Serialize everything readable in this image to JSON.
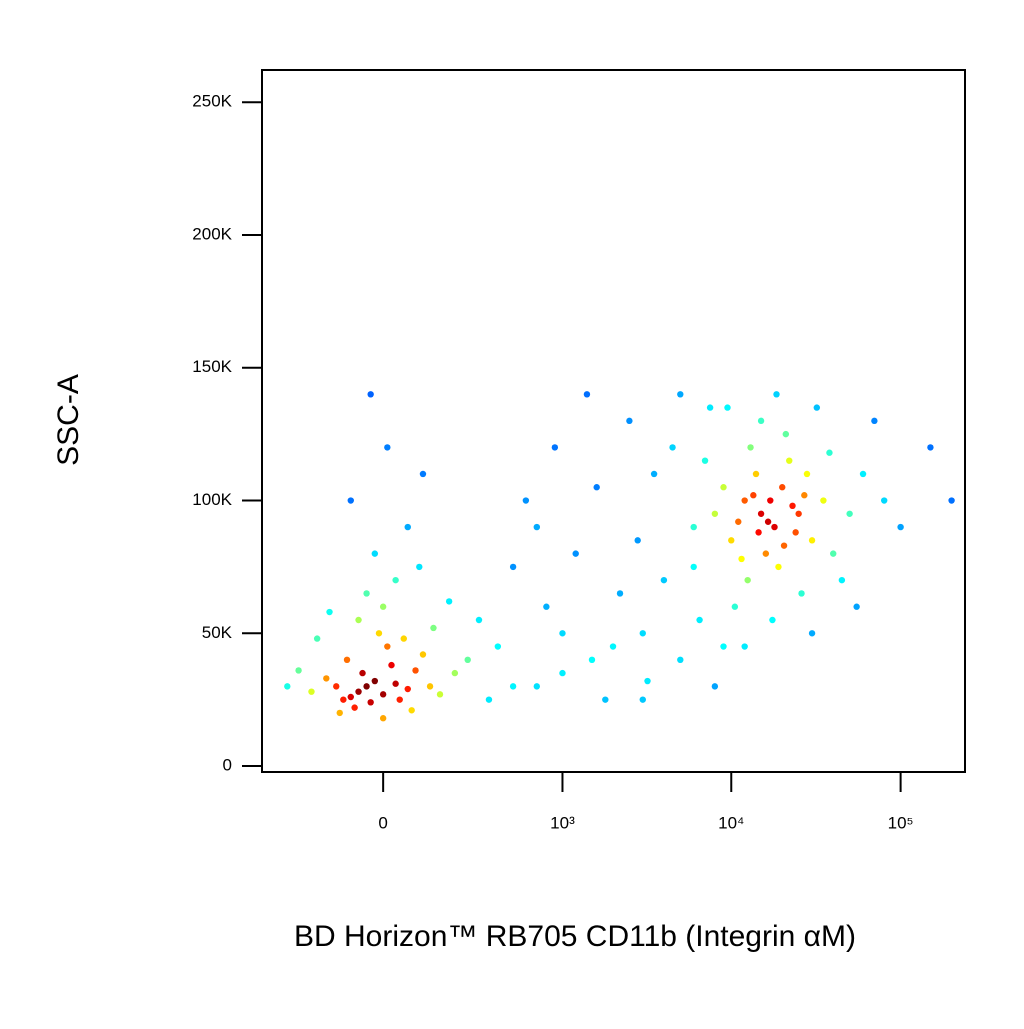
{
  "chart_data": {
    "type": "scatter",
    "xlabel": "BD Horizon™ RB705 CD11b (Integrin αM)",
    "ylabel": "SSC-A",
    "xscale": "biexponential",
    "xlim": [
      -440,
      240000
    ],
    "ylim": [
      -2250,
      262144
    ],
    "xticks": [
      0,
      {
        "value": 1000,
        "label": "10³"
      },
      {
        "value": 10000,
        "label": "10⁴"
      },
      {
        "value": 100000,
        "label": "10⁵"
      }
    ],
    "yticks": [
      0,
      {
        "value": 50000,
        "label": "50K"
      },
      {
        "value": 100000,
        "label": "100K"
      },
      {
        "value": 150000,
        "label": "150K"
      },
      {
        "value": 200000,
        "label": "200K"
      },
      {
        "value": 250000,
        "label": "250K"
      }
    ],
    "colormap": "jet",
    "x": [
      -60,
      -40,
      -80,
      -20,
      -100,
      -50,
      0,
      30,
      -120,
      -70,
      -30,
      20,
      60,
      -90,
      10,
      -150,
      80,
      40,
      -10,
      100,
      -60,
      120,
      -200,
      150,
      0,
      -40,
      50,
      200,
      -110,
      70,
      250,
      -250,
      30,
      -20,
      60,
      -80,
      10,
      100,
      -30,
      300,
      180,
      -180,
      90,
      400,
      500,
      350,
      -300,
      0,
      130,
      -140,
      700,
      1000,
      1500,
      2000,
      3000,
      800,
      1200,
      600,
      900,
      2500,
      4000,
      5000,
      1800,
      3500,
      6000,
      2200,
      1400,
      700,
      5000,
      3000,
      8000,
      4500,
      1000,
      2800,
      6500,
      1600,
      7500,
      500,
      3200,
      9000,
      15000,
      12000,
      18000,
      20000,
      10000,
      25000,
      14000,
      16000,
      22000,
      11000,
      30000,
      13000,
      19000,
      9000,
      28000,
      17000,
      24000,
      12500,
      35000,
      8000,
      40000,
      15000,
      21000,
      50000,
      7000,
      26000,
      10500,
      60000,
      32000,
      18500,
      45000,
      80000,
      14500,
      23000,
      16500,
      20500,
      13500,
      27000,
      11500,
      38000,
      70000,
      100000,
      6000,
      9500,
      55000,
      150000,
      17500,
      30000,
      12000,
      200000
    ],
    "values": [
      28000,
      30000,
      26000,
      32000,
      25000,
      35000,
      27000,
      31000,
      30000,
      22000,
      24000,
      38000,
      29000,
      40000,
      45000,
      33000,
      36000,
      25000,
      50000,
      42000,
      55000,
      30000,
      28000,
      27000,
      60000,
      65000,
      48000,
      35000,
      20000,
      21000,
      40000,
      36000,
      70000,
      80000,
      90000,
      100000,
      120000,
      110000,
      140000,
      55000,
      62000,
      48000,
      75000,
      45000,
      30000,
      25000,
      30000,
      18000,
      52000,
      58000,
      30000,
      35000,
      40000,
      45000,
      50000,
      60000,
      80000,
      100000,
      120000,
      130000,
      70000,
      40000,
      25000,
      110000,
      90000,
      65000,
      140000,
      90000,
      140000,
      25000,
      30000,
      120000,
      50000,
      85000,
      55000,
      105000,
      135000,
      75000,
      32000,
      45000,
      95000,
      100000,
      90000,
      105000,
      85000,
      95000,
      110000,
      80000,
      115000,
      92000,
      85000,
      120000,
      75000,
      105000,
      110000,
      100000,
      88000,
      70000,
      100000,
      95000,
      80000,
      130000,
      125000,
      95000,
      115000,
      65000,
      60000,
      110000,
      135000,
      140000,
      70000,
      100000,
      88000,
      98000,
      92000,
      83000,
      102000,
      102000,
      78000,
      118000,
      130000,
      90000,
      75000,
      135000,
      60000,
      120000,
      55000,
      50000,
      45000,
      100000
    ]
  }
}
